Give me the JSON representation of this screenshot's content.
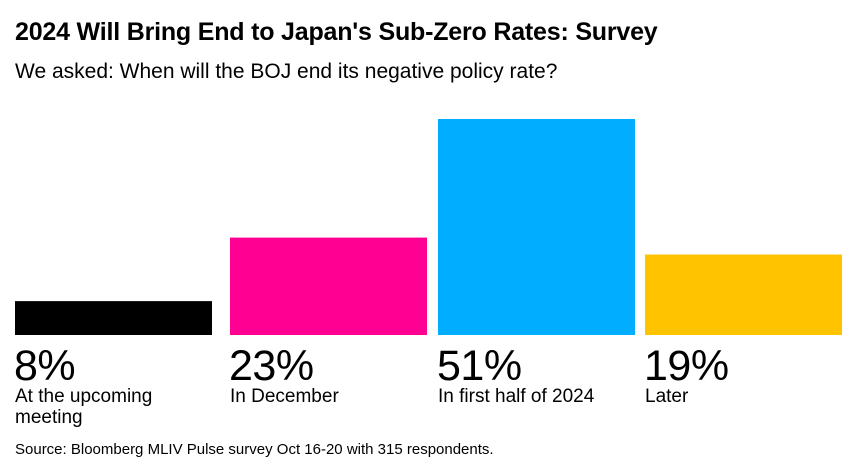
{
  "header": {
    "title": "2024 Will Bring End to Japan's Sub-Zero Rates: Survey",
    "subtitle": "We asked: When will the BOJ end its negative policy rate?"
  },
  "chart_data": {
    "type": "bar",
    "title": "2024 Will Bring End to Japan's Sub-Zero Rates: Survey",
    "subtitle": "We asked: When will the BOJ end its negative policy rate?",
    "categories": [
      "At the upcoming meeting",
      "In December",
      "In first half of 2024",
      "Later"
    ],
    "values": [
      8,
      23,
      51,
      19
    ],
    "value_labels": [
      "8%",
      "23%",
      "51%",
      "19%"
    ],
    "colors": [
      "#000000",
      "#ff0092",
      "#00adff",
      "#ffc300"
    ],
    "xlabel": "",
    "ylabel": "",
    "ylim": [
      0,
      51
    ],
    "grid": false,
    "legend": "none"
  },
  "footer": {
    "source": "Source: Bloomberg MLIV Pulse survey Oct 16-20 with 315 respondents."
  }
}
